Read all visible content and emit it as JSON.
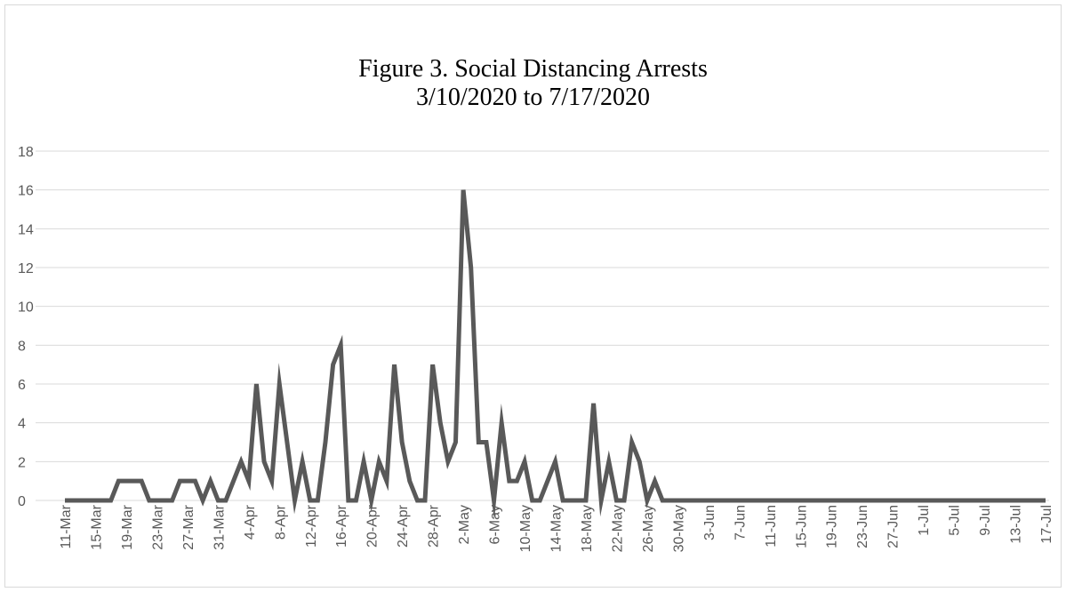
{
  "chart_data": {
    "type": "line",
    "title": "Figure 3. Social Distancing Arrests",
    "subtitle": "3/10/2020 to 7/17/2020",
    "xlabel": "",
    "ylabel": "",
    "ylim": [
      0,
      18
    ],
    "yticks": [
      0,
      2,
      4,
      6,
      8,
      10,
      12,
      14,
      16,
      18
    ],
    "grid": true,
    "legend": "none",
    "series_color": "#595959",
    "grid_color": "#d9d9d9",
    "x_tick_labels": [
      "11-Mar",
      "15-Mar",
      "19-Mar",
      "23-Mar",
      "27-Mar",
      "31-Mar",
      "4-Apr",
      "8-Apr",
      "12-Apr",
      "16-Apr",
      "20-Apr",
      "24-Apr",
      "28-Apr",
      "2-May",
      "6-May",
      "10-May",
      "14-May",
      "18-May",
      "22-May",
      "26-May",
      "30-May",
      "3-Jun",
      "7-Jun",
      "11-Jun",
      "15-Jun",
      "19-Jun",
      "23-Jun",
      "27-Jun",
      "1-Jul",
      "5-Jul",
      "9-Jul",
      "13-Jul",
      "17-Jul"
    ],
    "series": [
      {
        "start_date": "2020-03-11",
        "values": [
          0,
          0,
          0,
          0,
          0,
          0,
          0,
          1,
          1,
          1,
          1,
          0,
          0,
          0,
          0,
          1,
          1,
          1,
          0,
          1,
          0,
          0,
          1,
          2,
          1,
          6,
          2,
          1,
          6,
          3,
          0,
          2,
          0,
          0,
          3,
          7,
          8,
          0,
          0,
          2,
          0,
          2,
          1,
          7,
          3,
          1,
          0,
          0,
          7,
          4,
          2,
          3,
          16,
          12,
          3,
          3,
          0,
          4,
          1,
          1,
          2,
          0,
          0,
          1,
          2,
          0,
          0,
          0,
          0,
          5,
          0,
          2,
          0,
          0,
          3,
          2,
          0,
          1,
          0,
          0,
          0,
          0,
          0,
          0,
          0,
          0,
          0,
          0,
          0,
          0,
          0,
          0,
          0,
          0,
          0,
          0,
          0,
          0,
          0,
          0,
          0,
          0,
          0,
          0,
          0,
          0,
          0,
          0,
          0,
          0,
          0,
          0,
          0,
          0,
          0,
          0,
          0,
          0,
          0,
          0,
          0,
          0,
          0,
          0,
          0,
          0,
          0,
          0,
          0
        ]
      }
    ]
  }
}
